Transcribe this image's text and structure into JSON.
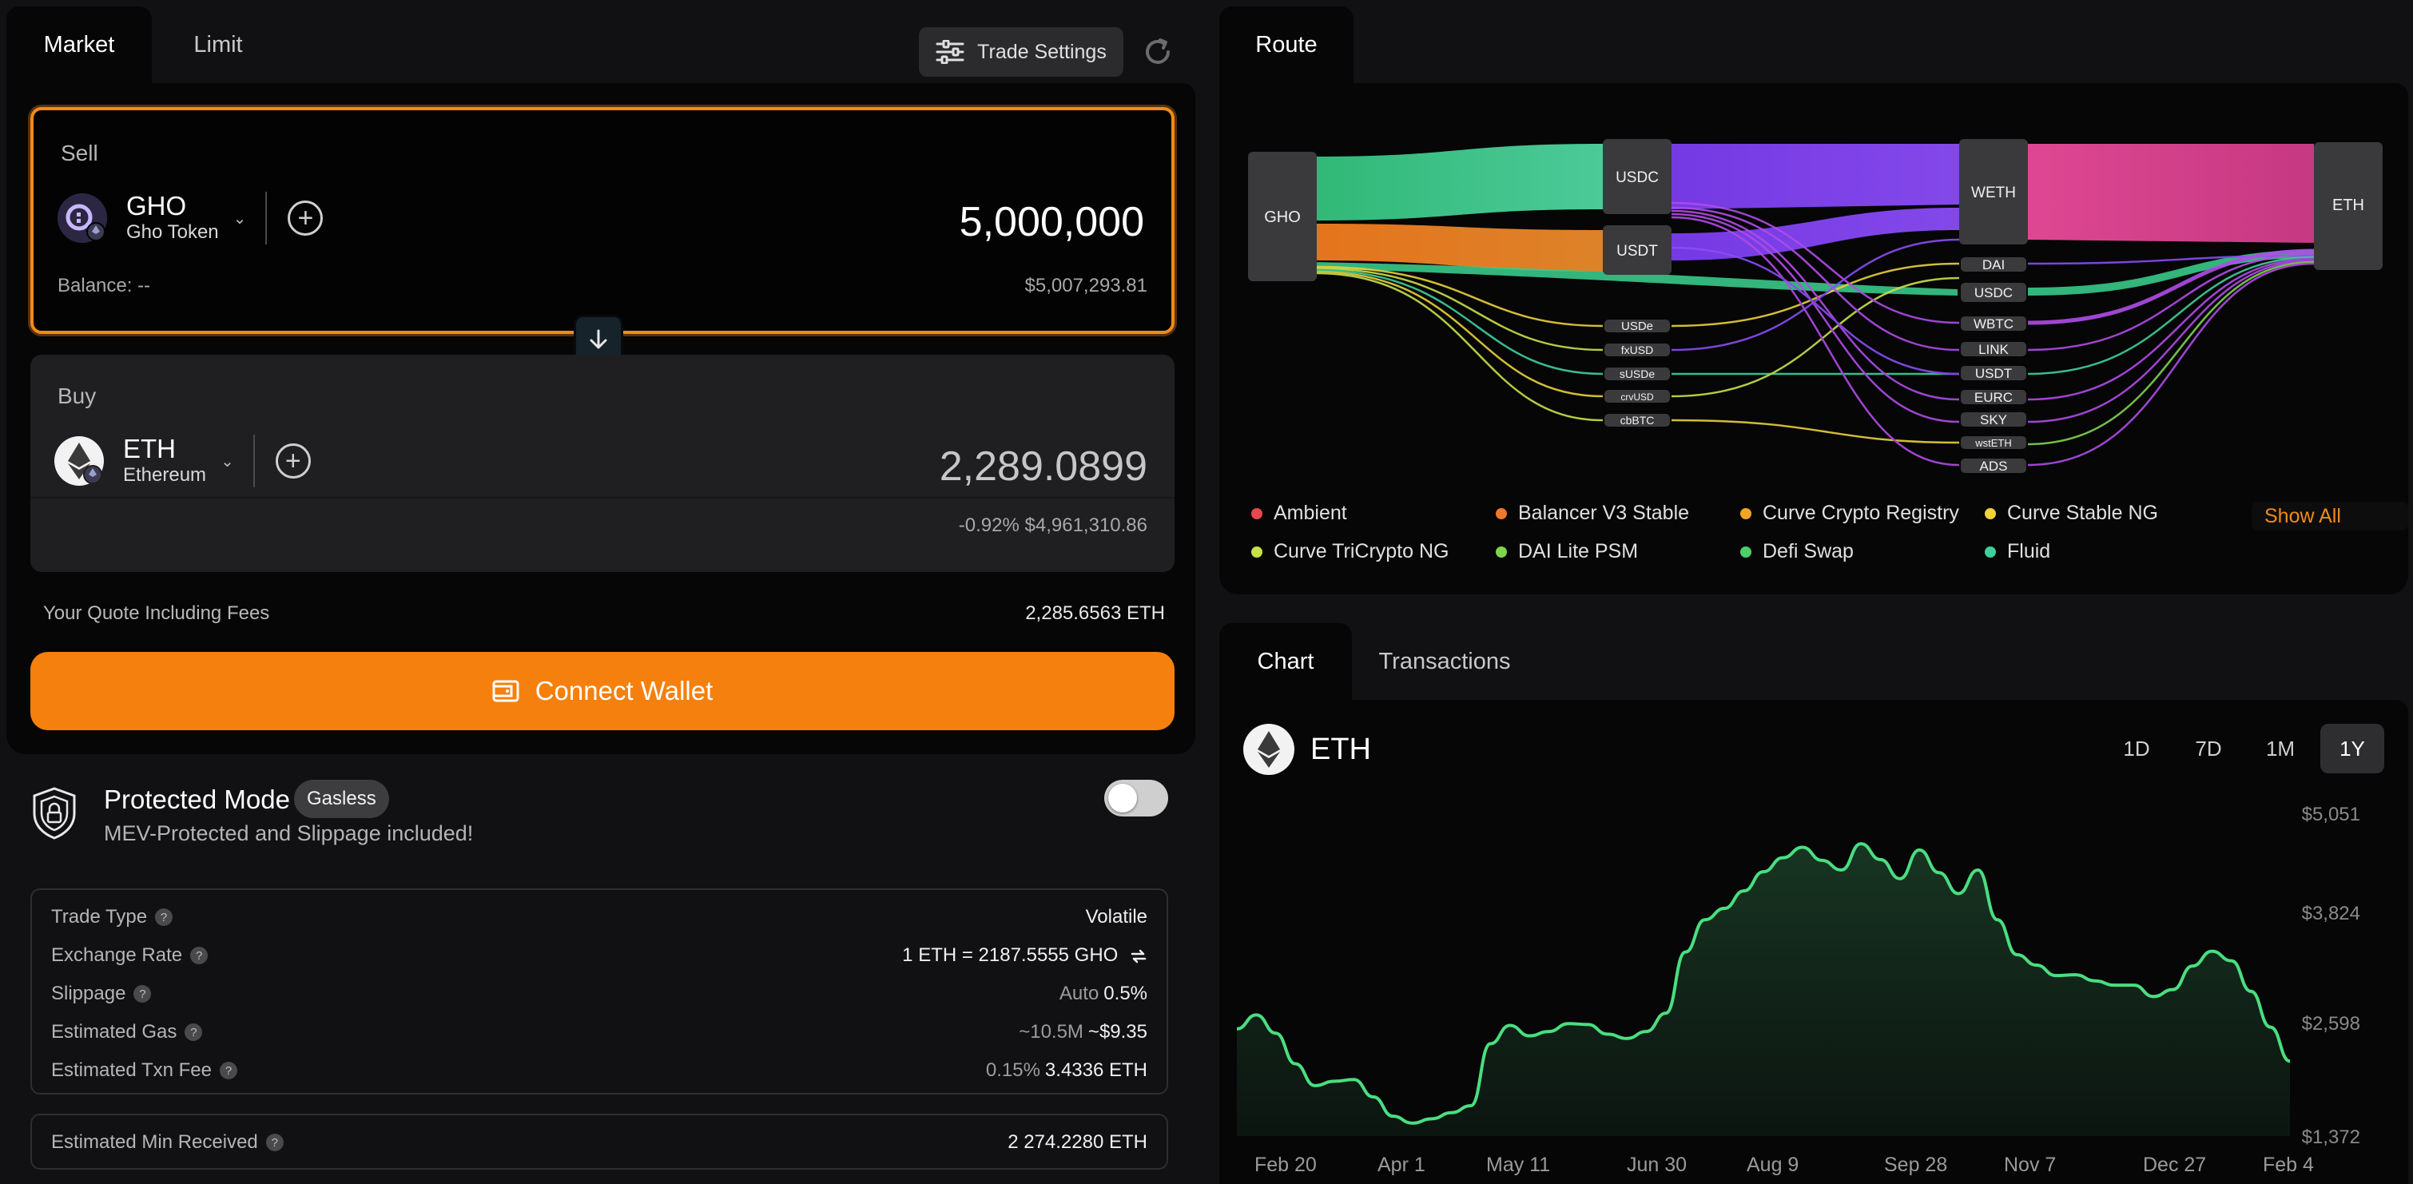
{
  "tabs": {
    "market": "Market",
    "limit": "Limit"
  },
  "trade_settings_label": "Trade Settings",
  "sell": {
    "label": "Sell",
    "symbol": "GHO",
    "name": "Gho Token",
    "amount": "5,000,000",
    "balance": "Balance: --",
    "usd": "$5,007,293.81"
  },
  "buy": {
    "label": "Buy",
    "symbol": "ETH",
    "name": "Ethereum",
    "amount": "2,289.0899",
    "change": "-0.92%",
    "usd": "$4,961,310.86"
  },
  "quote": {
    "label": "Your Quote Including Fees",
    "value": "2,285.6563 ETH"
  },
  "connect_wallet": "Connect Wallet",
  "protected": {
    "title": "Protected Mode",
    "badge": "Gasless",
    "subtitle": "MEV-Protected and Slippage included!",
    "enabled": false
  },
  "details": [
    {
      "label": "Trade Type",
      "muted": "",
      "value": "Volatile"
    },
    {
      "label": "Exchange Rate",
      "muted": "",
      "value": "1 ETH = 2187.5555 GHO"
    },
    {
      "label": "Slippage",
      "muted": "Auto",
      "value": "0.5%"
    },
    {
      "label": "Estimated Gas",
      "muted": "~10.5M",
      "value": "~$9.35"
    },
    {
      "label": "Estimated Txn Fee",
      "muted": "0.15%",
      "value": "3.4336 ETH"
    }
  ],
  "min_received": {
    "label": "Estimated Min Received",
    "value": "2 274.2280 ETH"
  },
  "route": {
    "tab": "Route",
    "nodes": {
      "source": "GHO",
      "target": "ETH",
      "mid1": [
        "USDC",
        "USDT"
      ],
      "mid2": "WETH",
      "small_left": [
        "USDe",
        "fxUSD",
        "sUSDe",
        "crvUSD",
        "cbBTC"
      ],
      "small_right": [
        "DAI",
        "USDC",
        "WBTC",
        "LINK",
        "USDT",
        "EURC",
        "SKY",
        "wstETH",
        "ADS"
      ]
    },
    "legend": [
      {
        "name": "Ambient",
        "color": "#e5484d"
      },
      {
        "name": "Balancer V3 Stable",
        "color": "#f0782a"
      },
      {
        "name": "Curve Crypto Registry",
        "color": "#f5a524"
      },
      {
        "name": "Curve Stable NG",
        "color": "#f3d23a"
      },
      {
        "name": "Curve TriCrypto NG",
        "color": "#c9e04a"
      },
      {
        "name": "DAI Lite PSM",
        "color": "#7fd34e"
      },
      {
        "name": "Defi Swap",
        "color": "#4ccf6a"
      },
      {
        "name": "Fluid",
        "color": "#3fcf9a"
      }
    ],
    "show_all": "Show All"
  },
  "chart_tabs": {
    "chart": "Chart",
    "transactions": "Transactions"
  },
  "chart_header": {
    "symbol": "ETH"
  },
  "ranges": [
    "1D",
    "7D",
    "1M",
    "1Y"
  ],
  "active_range": "1Y",
  "chart_data": {
    "type": "area",
    "title": "",
    "xlabel": "",
    "ylabel": "",
    "x_tick_labels": [
      "Feb 20",
      "Apr 1",
      "May 11",
      "Jun 30",
      "Aug 9",
      "Sep 28",
      "Nov 7",
      "Dec 27",
      "Feb 4"
    ],
    "y_tick_labels": [
      "$5,051",
      "$3,824",
      "$2,598",
      "$1,372"
    ],
    "ylim": [
      1372,
      5051
    ],
    "series": [
      {
        "name": "",
        "color": "#4ade80",
        "values": [
          2600,
          2760,
          2550,
          2200,
          1950,
          2000,
          2020,
          1820,
          1600,
          1520,
          1570,
          1640,
          1720,
          2430,
          2640,
          2520,
          2570,
          2660,
          2650,
          2540,
          2490,
          2570,
          2780,
          3480,
          3850,
          3980,
          4180,
          4400,
          4560,
          4680,
          4530,
          4420,
          4720,
          4540,
          4320,
          4650,
          4390,
          4150,
          4420,
          3850,
          3450,
          3330,
          3210,
          3220,
          3150,
          3100,
          3100,
          2970,
          3050,
          3320,
          3490,
          3380,
          3030,
          2620,
          2230
        ]
      }
    ]
  }
}
